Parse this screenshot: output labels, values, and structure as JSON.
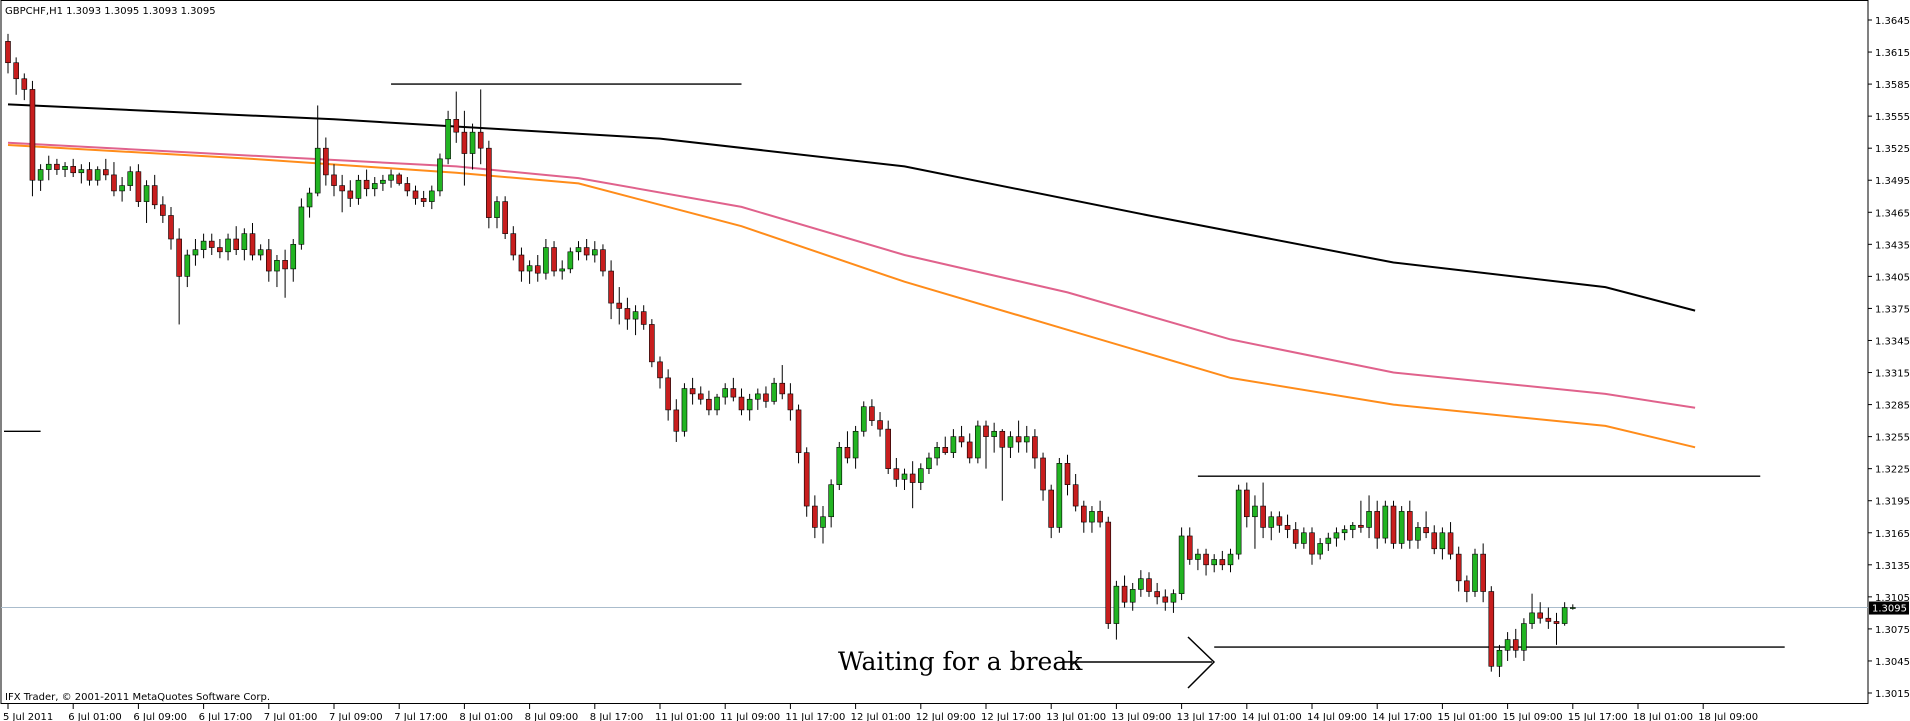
{
  "header": {
    "symbol_info": "GBPCHF,H1  1.3093 1.3095 1.3093 1.3095"
  },
  "footer": {
    "copyright": "IFX Trader, © 2001-2011 MetaQuotes Software Corp."
  },
  "annotation": {
    "text": "Waiting for a break"
  },
  "current_price_label": "1.3095",
  "colors": {
    "bull": "#22b422",
    "bear": "#c81e1e",
    "wick": "#000000",
    "ma_slow": "#000000",
    "ma_mid": "#e0628c",
    "ma_fast": "#ff8c1a",
    "current_line": "#aabccc"
  },
  "chart_data": {
    "type": "candlestick",
    "title": "GBPCHF,H1",
    "ylim": [
      1.3005,
      1.3665
    ],
    "y_ticks": [
      "1.3645",
      "1.3615",
      "1.3585",
      "1.3555",
      "1.3525",
      "1.3495",
      "1.3465",
      "1.3435",
      "1.3405",
      "1.3375",
      "1.3345",
      "1.3315",
      "1.3285",
      "1.3255",
      "1.3225",
      "1.3195",
      "1.3165",
      "1.3135",
      "1.3105",
      "1.3075",
      "1.3045",
      "1.3015"
    ],
    "x_ticks": [
      "5 Jul 2011",
      "6 Jul 01:00",
      "6 Jul 09:00",
      "6 Jul 17:00",
      "7 Jul 01:00",
      "7 Jul 09:00",
      "7 Jul 17:00",
      "8 Jul 01:00",
      "8 Jul 09:00",
      "8 Jul 17:00",
      "11 Jul 01:00",
      "11 Jul 09:00",
      "11 Jul 17:00",
      "12 Jul 01:00",
      "12 Jul 09:00",
      "12 Jul 17:00",
      "13 Jul 01:00",
      "13 Jul 09:00",
      "13 Jul 17:00",
      "14 Jul 01:00",
      "14 Jul 09:00",
      "14 Jul 17:00",
      "15 Jul 01:00",
      "15 Jul 09:00",
      "15 Jul 17:00",
      "18 Jul 01:00",
      "18 Jul 09:00"
    ],
    "bars_per_tick": 8,
    "last_close": 1.3095,
    "candles": [
      [
        1.3625,
        1.3632,
        1.3595,
        1.3605
      ],
      [
        1.3605,
        1.361,
        1.3575,
        1.359
      ],
      [
        1.359,
        1.3595,
        1.357,
        1.358
      ],
      [
        1.358,
        1.3588,
        1.348,
        1.3495
      ],
      [
        1.3495,
        1.351,
        1.3485,
        1.3505
      ],
      [
        1.3505,
        1.3518,
        1.3495,
        1.351
      ],
      [
        1.351,
        1.3515,
        1.35,
        1.3505
      ],
      [
        1.3505,
        1.3512,
        1.3498,
        1.3508
      ],
      [
        1.3508,
        1.3515,
        1.3498,
        1.3502
      ],
      [
        1.3502,
        1.351,
        1.3492,
        1.3505
      ],
      [
        1.3505,
        1.3512,
        1.349,
        1.3495
      ],
      [
        1.3495,
        1.3508,
        1.349,
        1.3505
      ],
      [
        1.3505,
        1.3515,
        1.3495,
        1.35
      ],
      [
        1.35,
        1.3512,
        1.348,
        1.3485
      ],
      [
        1.3485,
        1.3498,
        1.3475,
        1.349
      ],
      [
        1.349,
        1.3508,
        1.3485,
        1.3503
      ],
      [
        1.3503,
        1.351,
        1.347,
        1.3475
      ],
      [
        1.3475,
        1.3495,
        1.3455,
        1.349
      ],
      [
        1.349,
        1.35,
        1.3468,
        1.3472
      ],
      [
        1.3472,
        1.348,
        1.3455,
        1.3462
      ],
      [
        1.3462,
        1.347,
        1.343,
        1.344
      ],
      [
        1.344,
        1.345,
        1.336,
        1.3405
      ],
      [
        1.3405,
        1.343,
        1.3395,
        1.3425
      ],
      [
        1.3425,
        1.344,
        1.3415,
        1.343
      ],
      [
        1.343,
        1.3445,
        1.3422,
        1.3438
      ],
      [
        1.3438,
        1.3445,
        1.3425,
        1.3432
      ],
      [
        1.3432,
        1.344,
        1.3422,
        1.3428
      ],
      [
        1.3428,
        1.3445,
        1.342,
        1.344
      ],
      [
        1.344,
        1.3452,
        1.3425,
        1.343
      ],
      [
        1.343,
        1.345,
        1.342,
        1.3445
      ],
      [
        1.3445,
        1.3455,
        1.342,
        1.3425
      ],
      [
        1.3425,
        1.3435,
        1.342,
        1.343
      ],
      [
        1.343,
        1.344,
        1.34,
        1.341
      ],
      [
        1.341,
        1.3425,
        1.3395,
        1.342
      ],
      [
        1.342,
        1.343,
        1.3385,
        1.3412
      ],
      [
        1.3412,
        1.344,
        1.34,
        1.3435
      ],
      [
        1.3435,
        1.3478,
        1.343,
        1.347
      ],
      [
        1.347,
        1.3488,
        1.346,
        1.3483
      ],
      [
        1.3483,
        1.3565,
        1.348,
        1.3525
      ],
      [
        1.3525,
        1.3535,
        1.349,
        1.35
      ],
      [
        1.35,
        1.351,
        1.348,
        1.349
      ],
      [
        1.349,
        1.35,
        1.3465,
        1.3485
      ],
      [
        1.3485,
        1.3495,
        1.347,
        1.3478
      ],
      [
        1.3478,
        1.35,
        1.3472,
        1.3495
      ],
      [
        1.3495,
        1.3505,
        1.348,
        1.3487
      ],
      [
        1.3487,
        1.3498,
        1.348,
        1.3492
      ],
      [
        1.3492,
        1.35,
        1.3485,
        1.3495
      ],
      [
        1.3495,
        1.3505,
        1.3488,
        1.35
      ],
      [
        1.35,
        1.3502,
        1.349,
        1.3492
      ],
      [
        1.3492,
        1.3498,
        1.348,
        1.3485
      ],
      [
        1.3485,
        1.349,
        1.3472,
        1.3478
      ],
      [
        1.3478,
        1.3485,
        1.347,
        1.3475
      ],
      [
        1.3475,
        1.349,
        1.3468,
        1.3485
      ],
      [
        1.3485,
        1.352,
        1.348,
        1.3515
      ],
      [
        1.3515,
        1.356,
        1.351,
        1.3552
      ],
      [
        1.3552,
        1.3578,
        1.353,
        1.354
      ],
      [
        1.354,
        1.356,
        1.349,
        1.352
      ],
      [
        1.352,
        1.3548,
        1.3505,
        1.354
      ],
      [
        1.354,
        1.358,
        1.351,
        1.3525
      ],
      [
        1.3525,
        1.3532,
        1.345,
        1.346
      ],
      [
        1.346,
        1.348,
        1.345,
        1.3475
      ],
      [
        1.3475,
        1.348,
        1.344,
        1.3445
      ],
      [
        1.3445,
        1.3452,
        1.342,
        1.3425
      ],
      [
        1.3425,
        1.3432,
        1.34,
        1.341
      ],
      [
        1.341,
        1.342,
        1.3398,
        1.3415
      ],
      [
        1.3415,
        1.3425,
        1.34,
        1.3408
      ],
      [
        1.3408,
        1.344,
        1.3402,
        1.3432
      ],
      [
        1.3432,
        1.3438,
        1.3405,
        1.341
      ],
      [
        1.341,
        1.342,
        1.3402,
        1.3412
      ],
      [
        1.3412,
        1.3432,
        1.3408,
        1.3428
      ],
      [
        1.3428,
        1.3438,
        1.342,
        1.3432
      ],
      [
        1.3432,
        1.344,
        1.342,
        1.3425
      ],
      [
        1.3425,
        1.3438,
        1.3418,
        1.343
      ],
      [
        1.343,
        1.3435,
        1.3405,
        1.341
      ],
      [
        1.341,
        1.342,
        1.3365,
        1.338
      ],
      [
        1.338,
        1.3395,
        1.336,
        1.3375
      ],
      [
        1.3375,
        1.3385,
        1.3355,
        1.3365
      ],
      [
        1.3365,
        1.3378,
        1.335,
        1.3372
      ],
      [
        1.3372,
        1.3378,
        1.3355,
        1.336
      ],
      [
        1.336,
        1.3365,
        1.332,
        1.3325
      ],
      [
        1.3325,
        1.333,
        1.33,
        1.331
      ],
      [
        1.331,
        1.3318,
        1.327,
        1.328
      ],
      [
        1.328,
        1.329,
        1.325,
        1.326
      ],
      [
        1.326,
        1.3305,
        1.3255,
        1.33
      ],
      [
        1.33,
        1.331,
        1.3285,
        1.3295
      ],
      [
        1.3295,
        1.3302,
        1.3285,
        1.329
      ],
      [
        1.329,
        1.3298,
        1.3275,
        1.328
      ],
      [
        1.328,
        1.3295,
        1.3275,
        1.3292
      ],
      [
        1.3292,
        1.3305,
        1.3285,
        1.33
      ],
      [
        1.33,
        1.331,
        1.3288,
        1.3292
      ],
      [
        1.3292,
        1.33,
        1.3275,
        1.328
      ],
      [
        1.328,
        1.3295,
        1.327,
        1.329
      ],
      [
        1.329,
        1.33,
        1.328,
        1.3295
      ],
      [
        1.3295,
        1.3302,
        1.3282,
        1.3288
      ],
      [
        1.3288,
        1.331,
        1.3285,
        1.3305
      ],
      [
        1.3305,
        1.3322,
        1.329,
        1.3295
      ],
      [
        1.3295,
        1.3305,
        1.327,
        1.328
      ],
      [
        1.328,
        1.3285,
        1.323,
        1.324
      ],
      [
        1.324,
        1.3245,
        1.318,
        1.319
      ],
      [
        1.319,
        1.32,
        1.316,
        1.317
      ],
      [
        1.317,
        1.319,
        1.3155,
        1.318
      ],
      [
        1.318,
        1.3215,
        1.317,
        1.321
      ],
      [
        1.321,
        1.325,
        1.3205,
        1.3245
      ],
      [
        1.3245,
        1.326,
        1.323,
        1.3235
      ],
      [
        1.3235,
        1.3265,
        1.3225,
        1.326
      ],
      [
        1.326,
        1.3288,
        1.3255,
        1.3283
      ],
      [
        1.3283,
        1.329,
        1.3265,
        1.327
      ],
      [
        1.327,
        1.3278,
        1.3255,
        1.3262
      ],
      [
        1.3262,
        1.327,
        1.322,
        1.3225
      ],
      [
        1.3225,
        1.3235,
        1.3208,
        1.3215
      ],
      [
        1.3215,
        1.3225,
        1.3205,
        1.322
      ],
      [
        1.322,
        1.3232,
        1.3188,
        1.3212
      ],
      [
        1.3212,
        1.323,
        1.3205,
        1.3225
      ],
      [
        1.3225,
        1.324,
        1.322,
        1.3235
      ],
      [
        1.3235,
        1.325,
        1.3228,
        1.3245
      ],
      [
        1.3245,
        1.3255,
        1.3238,
        1.324
      ],
      [
        1.324,
        1.3262,
        1.3235,
        1.3255
      ],
      [
        1.3255,
        1.3265,
        1.3245,
        1.325
      ],
      [
        1.325,
        1.3258,
        1.323,
        1.3235
      ],
      [
        1.3235,
        1.327,
        1.323,
        1.3265
      ],
      [
        1.3265,
        1.327,
        1.3225,
        1.3255
      ],
      [
        1.3255,
        1.3268,
        1.324,
        1.326
      ],
      [
        1.326,
        1.3262,
        1.3195,
        1.3245
      ],
      [
        1.3245,
        1.326,
        1.3235,
        1.3255
      ],
      [
        1.3255,
        1.327,
        1.324,
        1.325
      ],
      [
        1.325,
        1.3265,
        1.324,
        1.3255
      ],
      [
        1.3255,
        1.3262,
        1.3225,
        1.3235
      ],
      [
        1.3235,
        1.324,
        1.3195,
        1.3205
      ],
      [
        1.3205,
        1.321,
        1.316,
        1.317
      ],
      [
        1.317,
        1.3235,
        1.3165,
        1.323
      ],
      [
        1.323,
        1.3238,
        1.32,
        1.321
      ],
      [
        1.321,
        1.322,
        1.3185,
        1.319
      ],
      [
        1.319,
        1.3195,
        1.3165,
        1.3175
      ],
      [
        1.3175,
        1.319,
        1.3165,
        1.3185
      ],
      [
        1.3185,
        1.3195,
        1.317,
        1.3175
      ],
      [
        1.3175,
        1.318,
        1.3075,
        1.308
      ],
      [
        1.308,
        1.312,
        1.3065,
        1.3115
      ],
      [
        1.3115,
        1.3125,
        1.3095,
        1.31
      ],
      [
        1.31,
        1.3118,
        1.3092,
        1.3112
      ],
      [
        1.3112,
        1.313,
        1.3105,
        1.3122
      ],
      [
        1.3122,
        1.3128,
        1.3105,
        1.311
      ],
      [
        1.311,
        1.3118,
        1.3098,
        1.3105
      ],
      [
        1.3105,
        1.3112,
        1.3092,
        1.31
      ],
      [
        1.31,
        1.3112,
        1.309,
        1.3108
      ],
      [
        1.3108,
        1.317,
        1.3102,
        1.3162
      ],
      [
        1.3162,
        1.317,
        1.3135,
        1.314
      ],
      [
        1.314,
        1.315,
        1.313,
        1.3145
      ],
      [
        1.3145,
        1.315,
        1.3125,
        1.3135
      ],
      [
        1.3135,
        1.3145,
        1.3128,
        1.314
      ],
      [
        1.314,
        1.3148,
        1.313,
        1.3135
      ],
      [
        1.3135,
        1.315,
        1.3128,
        1.3145
      ],
      [
        1.3145,
        1.321,
        1.314,
        1.3205
      ],
      [
        1.3205,
        1.3212,
        1.317,
        1.318
      ],
      [
        1.318,
        1.32,
        1.315,
        1.319
      ],
      [
        1.319,
        1.3212,
        1.316,
        1.317
      ],
      [
        1.317,
        1.3185,
        1.3158,
        1.318
      ],
      [
        1.318,
        1.3185,
        1.3165,
        1.3172
      ],
      [
        1.3172,
        1.3182,
        1.316,
        1.3168
      ],
      [
        1.3168,
        1.3175,
        1.315,
        1.3155
      ],
      [
        1.3155,
        1.317,
        1.315,
        1.3165
      ],
      [
        1.3165,
        1.317,
        1.3135,
        1.3145
      ],
      [
        1.3145,
        1.316,
        1.314,
        1.3155
      ],
      [
        1.3155,
        1.3165,
        1.3148,
        1.316
      ],
      [
        1.316,
        1.317,
        1.3152,
        1.3165
      ],
      [
        1.3165,
        1.3172,
        1.3158,
        1.3168
      ],
      [
        1.3168,
        1.3175,
        1.316,
        1.3172
      ],
      [
        1.3172,
        1.3195,
        1.3165,
        1.317
      ],
      [
        1.317,
        1.32,
        1.316,
        1.3185
      ],
      [
        1.3185,
        1.3195,
        1.315,
        1.316
      ],
      [
        1.316,
        1.3195,
        1.3155,
        1.319
      ],
      [
        1.319,
        1.3195,
        1.315,
        1.3155
      ],
      [
        1.3155,
        1.319,
        1.315,
        1.3185
      ],
      [
        1.3185,
        1.3195,
        1.315,
        1.3158
      ],
      [
        1.3158,
        1.3175,
        1.315,
        1.317
      ],
      [
        1.317,
        1.3185,
        1.316,
        1.3165
      ],
      [
        1.3165,
        1.3172,
        1.3145,
        1.315
      ],
      [
        1.315,
        1.317,
        1.314,
        1.3165
      ],
      [
        1.3165,
        1.3175,
        1.314,
        1.3145
      ],
      [
        1.3145,
        1.3152,
        1.311,
        1.312
      ],
      [
        1.312,
        1.3125,
        1.31,
        1.311
      ],
      [
        1.311,
        1.315,
        1.3105,
        1.3145
      ],
      [
        1.3145,
        1.3155,
        1.31,
        1.311
      ],
      [
        1.311,
        1.3115,
        1.3035,
        1.304
      ],
      [
        1.304,
        1.306,
        1.303,
        1.3055
      ],
      [
        1.3055,
        1.3072,
        1.3045,
        1.3065
      ],
      [
        1.3065,
        1.3075,
        1.3048,
        1.3055
      ],
      [
        1.3055,
        1.3085,
        1.3045,
        1.308
      ],
      [
        1.308,
        1.3108,
        1.3075,
        1.309
      ],
      [
        1.309,
        1.31,
        1.308,
        1.3085
      ],
      [
        1.3085,
        1.3095,
        1.3075,
        1.3082
      ],
      [
        1.3082,
        1.309,
        1.306,
        1.308
      ],
      [
        1.308,
        1.31,
        1.3078,
        1.3095
      ],
      [
        1.3095,
        1.3098,
        1.3093,
        1.3095
      ]
    ],
    "moving_averages": [
      {
        "color": "ma_slow",
        "points": [
          [
            0,
            1.3566
          ],
          [
            40,
            1.3552
          ],
          [
            80,
            1.3534
          ],
          [
            110,
            1.3508
          ],
          [
            140,
            1.3462
          ],
          [
            170,
            1.3418
          ],
          [
            196,
            1.3395
          ],
          [
            207,
            1.3373
          ]
        ]
      },
      {
        "color": "ma_mid",
        "points": [
          [
            0,
            1.353
          ],
          [
            30,
            1.3518
          ],
          [
            55,
            1.3508
          ],
          [
            70,
            1.3497
          ],
          [
            90,
            1.347
          ],
          [
            110,
            1.3425
          ],
          [
            130,
            1.339
          ],
          [
            150,
            1.3346
          ],
          [
            170,
            1.3315
          ],
          [
            196,
            1.3295
          ],
          [
            207,
            1.3282
          ]
        ]
      },
      {
        "color": "ma_fast",
        "points": [
          [
            0,
            1.3528
          ],
          [
            30,
            1.3515
          ],
          [
            55,
            1.3502
          ],
          [
            70,
            1.3492
          ],
          [
            90,
            1.3452
          ],
          [
            110,
            1.34
          ],
          [
            130,
            1.3355
          ],
          [
            150,
            1.331
          ],
          [
            170,
            1.3285
          ],
          [
            196,
            1.3265
          ],
          [
            207,
            1.3245
          ]
        ]
      }
    ],
    "trend_lines": [
      {
        "from": [
          47,
          1.3585
        ],
        "to": [
          90,
          1.3585
        ]
      },
      {
        "from": [
          0,
          1.326
        ],
        "to": [
          4,
          1.326
        ]
      },
      {
        "from": [
          146,
          1.3218
        ],
        "to": [
          215,
          1.3218
        ]
      },
      {
        "from": [
          148,
          1.3058
        ],
        "to": [
          218,
          1.3058
        ]
      }
    ]
  }
}
